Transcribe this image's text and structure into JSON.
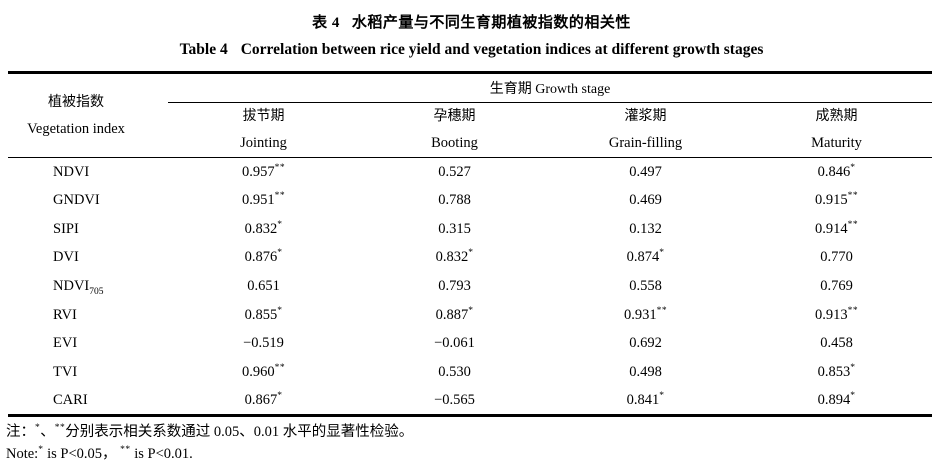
{
  "titles": {
    "zh_label": "表 4",
    "zh_text": "水稻产量与不同生育期植被指数的相关性",
    "en_label": "Table 4",
    "en_text": "Correlation between rice yield and vegetation indices at different growth stages"
  },
  "table": {
    "index_header_zh": "植被指数",
    "index_header_en": "Vegetation index",
    "group_header": "生育期 Growth stage",
    "columns": [
      {
        "zh": "拔节期",
        "en": "Jointing"
      },
      {
        "zh": "孕穗期",
        "en": "Booting"
      },
      {
        "zh": "灌浆期",
        "en": "Grain-filling"
      },
      {
        "zh": "成熟期",
        "en": "Maturity"
      }
    ],
    "rows": [
      {
        "index": "NDVI",
        "sub": "",
        "cells": [
          {
            "v": "0.957",
            "sig": "**"
          },
          {
            "v": "0.527",
            "sig": ""
          },
          {
            "v": "0.497",
            "sig": ""
          },
          {
            "v": "0.846",
            "sig": "*"
          }
        ]
      },
      {
        "index": "GNDVI",
        "sub": "",
        "cells": [
          {
            "v": "0.951",
            "sig": "**"
          },
          {
            "v": "0.788",
            "sig": ""
          },
          {
            "v": "0.469",
            "sig": ""
          },
          {
            "v": "0.915",
            "sig": "**"
          }
        ]
      },
      {
        "index": "SIPI",
        "sub": "",
        "cells": [
          {
            "v": "0.832",
            "sig": "*"
          },
          {
            "v": "0.315",
            "sig": ""
          },
          {
            "v": "0.132",
            "sig": ""
          },
          {
            "v": "0.914",
            "sig": "**"
          }
        ]
      },
      {
        "index": "DVI",
        "sub": "",
        "cells": [
          {
            "v": "0.876",
            "sig": "*"
          },
          {
            "v": "0.832",
            "sig": "*"
          },
          {
            "v": "0.874",
            "sig": "*"
          },
          {
            "v": "0.770",
            "sig": ""
          }
        ]
      },
      {
        "index": "NDVI",
        "sub": "705",
        "cells": [
          {
            "v": "0.651",
            "sig": ""
          },
          {
            "v": "0.793",
            "sig": ""
          },
          {
            "v": "0.558",
            "sig": ""
          },
          {
            "v": "0.769",
            "sig": ""
          }
        ]
      },
      {
        "index": "RVI",
        "sub": "",
        "cells": [
          {
            "v": "0.855",
            "sig": "*"
          },
          {
            "v": "0.887",
            "sig": "*"
          },
          {
            "v": "0.931",
            "sig": "**"
          },
          {
            "v": "0.913",
            "sig": "**"
          }
        ]
      },
      {
        "index": "EVI",
        "sub": "",
        "cells": [
          {
            "v": "−0.519",
            "sig": ""
          },
          {
            "v": "−0.061",
            "sig": ""
          },
          {
            "v": "0.692",
            "sig": ""
          },
          {
            "v": "0.458",
            "sig": ""
          }
        ]
      },
      {
        "index": "TVI",
        "sub": "",
        "cells": [
          {
            "v": "0.960",
            "sig": "**"
          },
          {
            "v": "0.530",
            "sig": ""
          },
          {
            "v": "0.498",
            "sig": ""
          },
          {
            "v": "0.853",
            "sig": "*"
          }
        ]
      },
      {
        "index": "CARI",
        "sub": "",
        "cells": [
          {
            "v": "0.867",
            "sig": "*"
          },
          {
            "v": "−0.565",
            "sig": ""
          },
          {
            "v": "0.841",
            "sig": "*"
          },
          {
            "v": "0.894",
            "sig": "*"
          }
        ]
      }
    ]
  },
  "notes": {
    "zh_prefix": "注：",
    "zh_sig1": "*",
    "zh_sep": "、",
    "zh_sig2": "**",
    "zh_text": "分别表示相关系数通过 0.05、0.01 水平的显著性检验。",
    "en_prefix": "Note:",
    "en_sig1": "*",
    "en_text1": " is P<0.05， ",
    "en_sig2": "**",
    "en_text2": " is P<0.01."
  }
}
